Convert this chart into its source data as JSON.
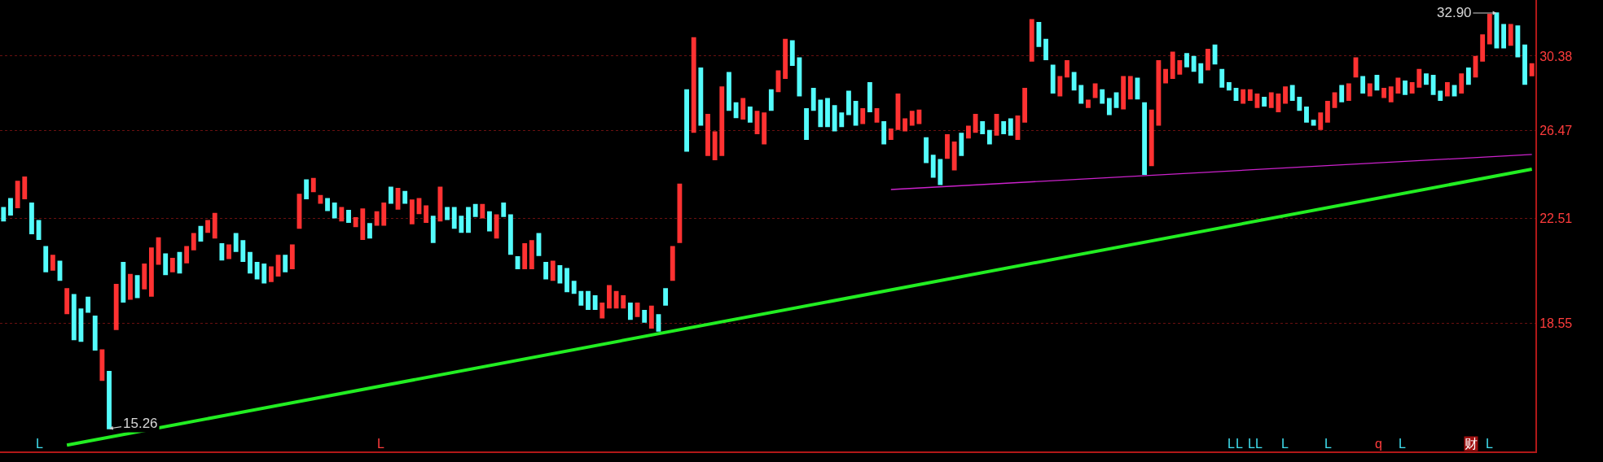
{
  "chart_data": {
    "type": "candlestick",
    "log": true,
    "ylim": [
      14.63,
      33.7
    ],
    "yticks": [
      18.55,
      22.51,
      26.47,
      30.38
    ],
    "grid": "y",
    "tick_labels": "y",
    "categories": [
      null,
      null,
      null,
      null,
      null,
      null,
      null,
      null,
      null,
      null,
      null,
      null,
      null,
      null,
      null,
      null,
      null,
      null,
      null,
      null,
      null,
      null,
      null,
      null,
      null,
      null,
      null,
      null,
      null,
      null,
      null,
      null,
      null,
      null,
      null,
      null,
      null,
      null,
      null,
      null,
      null,
      null,
      null,
      null,
      null,
      null,
      null,
      null,
      null,
      null,
      null,
      null,
      null,
      null,
      null,
      null,
      null,
      null,
      null,
      null,
      null,
      null,
      null,
      null,
      null,
      null,
      null,
      null,
      null,
      null,
      null,
      null,
      null,
      null,
      null,
      null,
      null,
      null,
      null,
      null,
      null,
      null,
      null,
      null,
      null,
      null,
      null,
      null,
      null,
      null,
      null,
      null,
      null,
      null,
      null,
      null,
      null,
      null,
      null,
      null,
      null,
      null,
      null,
      null,
      null,
      null,
      null,
      null,
      null,
      null,
      null,
      null,
      null,
      null,
      null,
      null,
      null,
      null,
      null,
      null,
      null,
      null,
      null,
      null,
      null,
      null,
      null,
      null,
      null,
      null,
      null,
      null,
      null,
      null,
      null,
      null,
      null,
      null,
      null,
      null,
      null,
      null,
      null,
      null,
      null,
      null,
      null,
      null,
      null,
      null,
      null,
      null,
      null,
      null,
      null,
      null,
      null,
      null,
      null,
      null,
      null,
      null,
      null,
      null,
      null,
      null,
      null,
      null,
      null,
      null,
      null,
      null,
      null,
      null,
      null,
      null,
      null,
      null,
      null,
      null,
      null,
      null,
      null,
      null,
      null,
      null,
      null,
      null,
      null,
      null,
      null,
      null,
      null,
      null,
      null,
      null,
      null,
      null,
      null,
      null,
      null,
      null,
      null,
      null,
      null,
      null,
      null,
      null,
      null,
      null,
      null,
      null,
      null,
      null,
      null,
      null,
      null,
      null
    ],
    "ohlc": [
      [
        22.96,
        22.96,
        22.41,
        22.41
      ],
      [
        23.34,
        23.34,
        22.65,
        22.65
      ],
      [
        22.96,
        24.1,
        22.96,
        24.1
      ],
      [
        23.34,
        24.29,
        23.34,
        24.29
      ],
      [
        23.15,
        23.15,
        21.88,
        21.88
      ],
      [
        22.41,
        22.41,
        21.65,
        21.65
      ],
      [
        21.36,
        21.36,
        20.4,
        20.4
      ],
      [
        20.46,
        21.02,
        20.46,
        21.02
      ],
      [
        20.79,
        20.79,
        20.08,
        20.08
      ],
      [
        18.88,
        19.76,
        18.88,
        19.76
      ],
      [
        19.55,
        19.55,
        17.99,
        17.99
      ],
      [
        19.03,
        19.03,
        17.94,
        17.94
      ],
      [
        19.45,
        19.45,
        18.93,
        18.93
      ],
      [
        18.78,
        18.78,
        17.65,
        17.65
      ],
      [
        16.69,
        17.65,
        16.69,
        17.65
      ],
      [
        16.96,
        16.96,
        15.26,
        15.26
      ],
      [
        18.33,
        19.92,
        18.33,
        19.92
      ],
      [
        20.74,
        20.74,
        19.29,
        19.29
      ],
      [
        19.39,
        20.29,
        19.39,
        20.29
      ],
      [
        20.24,
        20.24,
        19.45,
        19.45
      ],
      [
        19.76,
        20.68,
        19.76,
        20.68
      ],
      [
        19.5,
        21.3,
        19.5,
        21.3
      ],
      [
        20.68,
        21.71,
        20.68,
        21.71
      ],
      [
        21.07,
        21.07,
        20.29,
        20.29
      ],
      [
        20.4,
        20.9,
        20.4,
        20.9
      ],
      [
        21.13,
        21.13,
        20.35,
        20.35
      ],
      [
        20.74,
        21.36,
        20.74,
        21.36
      ],
      [
        21.24,
        21.88,
        21.24,
        21.88
      ],
      [
        22.17,
        22.17,
        21.59,
        21.59
      ],
      [
        21.94,
        22.41,
        21.94,
        22.41
      ],
      [
        21.71,
        22.71,
        21.71,
        22.71
      ],
      [
        21.47,
        21.47,
        20.85,
        20.85
      ],
      [
        20.9,
        21.42,
        20.9,
        21.42
      ],
      [
        21.88,
        21.88,
        21.18,
        21.18
      ],
      [
        21.59,
        21.59,
        20.79,
        20.79
      ],
      [
        21.13,
        21.13,
        20.35,
        20.35
      ],
      [
        20.74,
        20.74,
        20.13,
        20.13
      ],
      [
        20.68,
        20.68,
        19.98,
        19.98
      ],
      [
        20.03,
        20.57,
        20.03,
        20.57
      ],
      [
        20.24,
        21.02,
        20.24,
        21.02
      ],
      [
        21.02,
        21.02,
        20.4,
        20.4
      ],
      [
        20.51,
        21.42,
        20.51,
        21.42
      ],
      [
        22.11,
        23.53,
        22.11,
        23.53
      ],
      [
        24.16,
        24.16,
        23.34,
        23.34
      ],
      [
        23.65,
        24.23,
        23.65,
        24.23
      ],
      [
        23.15,
        23.47,
        23.15,
        23.47
      ],
      [
        23.34,
        23.34,
        22.84,
        22.84
      ],
      [
        23.15,
        23.15,
        22.53,
        22.53
      ],
      [
        22.41,
        22.96,
        22.41,
        22.96
      ],
      [
        22.84,
        22.84,
        22.35,
        22.35
      ],
      [
        22.17,
        22.53,
        22.17,
        22.53
      ],
      [
        21.65,
        22.9,
        21.65,
        22.9
      ],
      [
        22.29,
        22.29,
        21.71,
        21.71
      ],
      [
        22.23,
        22.78,
        22.23,
        22.78
      ],
      [
        22.23,
        23.15,
        22.23,
        23.15
      ],
      [
        23.84,
        23.84,
        23.15,
        23.15
      ],
      [
        22.9,
        23.78,
        22.9,
        23.78
      ],
      [
        23.65,
        23.65,
        23.15,
        23.15
      ],
      [
        22.29,
        23.28,
        22.29,
        23.28
      ],
      [
        22.71,
        23.34,
        22.71,
        23.34
      ],
      [
        22.35,
        23.03,
        22.35,
        23.03
      ],
      [
        22.59,
        22.59,
        21.53,
        21.53
      ],
      [
        22.41,
        23.84,
        22.41,
        23.84
      ],
      [
        22.96,
        22.96,
        22.47,
        22.47
      ],
      [
        22.96,
        22.96,
        22.11,
        22.11
      ],
      [
        22.59,
        22.59,
        21.94,
        21.94
      ],
      [
        22.96,
        22.96,
        21.94,
        21.94
      ],
      [
        23.09,
        23.09,
        22.59,
        22.59
      ],
      [
        22.53,
        23.09,
        22.53,
        23.09
      ],
      [
        22.78,
        22.78,
        22.0,
        22.0
      ],
      [
        21.71,
        22.65,
        21.71,
        22.65
      ],
      [
        23.15,
        23.15,
        22.59,
        22.59
      ],
      [
        22.65,
        22.65,
        21.07,
        21.07
      ],
      [
        20.96,
        20.96,
        20.51,
        20.51
      ],
      [
        20.51,
        21.47,
        20.51,
        21.47
      ],
      [
        20.51,
        21.59,
        20.51,
        21.59
      ],
      [
        21.88,
        21.88,
        21.02,
        21.02
      ],
      [
        20.74,
        20.74,
        20.13,
        20.13
      ],
      [
        20.08,
        20.79,
        20.08,
        20.79
      ],
      [
        20.62,
        20.62,
        19.98,
        19.98
      ],
      [
        20.51,
        20.51,
        19.66,
        19.66
      ],
      [
        20.03,
        20.03,
        19.6,
        19.6
      ],
      [
        19.66,
        19.66,
        19.18,
        19.18
      ],
      [
        19.66,
        19.66,
        19.03,
        19.03
      ],
      [
        19.5,
        19.5,
        19.03,
        19.03
      ],
      [
        18.73,
        19.24,
        18.73,
        19.24
      ],
      [
        19.08,
        19.87,
        19.08,
        19.87
      ],
      [
        19.08,
        19.66,
        19.08,
        19.66
      ],
      [
        19.08,
        19.5,
        19.08,
        19.5
      ],
      [
        19.24,
        19.24,
        18.68,
        18.68
      ],
      [
        18.78,
        19.24,
        18.78,
        19.24
      ],
      [
        18.98,
        18.98,
        18.58,
        18.58
      ],
      [
        18.38,
        19.13,
        18.38,
        19.13
      ],
      [
        18.83,
        18.83,
        18.28,
        18.28
      ],
      [
        19.76,
        19.76,
        19.18,
        19.18
      ],
      [
        20.08,
        21.36,
        20.08,
        21.36
      ],
      [
        21.53,
        23.97,
        21.53,
        23.97
      ],
      [
        28.54,
        28.54,
        25.49,
        25.49
      ],
      [
        26.4,
        31.42,
        26.4,
        31.42
      ],
      [
        29.71,
        29.71,
        26.75,
        26.75
      ],
      [
        25.29,
        27.27,
        25.29,
        27.27
      ],
      [
        25.09,
        26.4,
        25.09,
        26.4
      ],
      [
        25.29,
        28.69,
        25.29,
        28.69
      ],
      [
        29.47,
        29.47,
        27.49,
        27.49
      ],
      [
        27.86,
        27.86,
        27.12,
        27.12
      ],
      [
        27.05,
        28.08,
        27.05,
        28.08
      ],
      [
        27.64,
        27.64,
        26.9,
        26.9
      ],
      [
        26.33,
        27.42,
        26.33,
        27.42
      ],
      [
        25.84,
        27.34,
        25.84,
        27.34
      ],
      [
        28.54,
        28.54,
        27.49,
        27.49
      ],
      [
        28.46,
        29.55,
        28.46,
        29.55
      ],
      [
        29.16,
        31.33,
        29.16,
        31.33
      ],
      [
        31.25,
        31.25,
        29.87,
        29.87
      ],
      [
        30.27,
        30.27,
        28.23,
        28.23
      ],
      [
        27.56,
        27.56,
        26.05,
        26.05
      ],
      [
        28.62,
        28.62,
        27.49,
        27.49
      ],
      [
        28.0,
        28.0,
        26.68,
        26.68
      ],
      [
        28.08,
        28.08,
        26.68,
        26.68
      ],
      [
        27.71,
        27.71,
        26.47,
        26.47
      ],
      [
        27.34,
        27.34,
        26.68,
        26.68
      ],
      [
        28.46,
        28.46,
        27.27,
        27.27
      ],
      [
        27.93,
        27.93,
        26.75,
        26.75
      ],
      [
        26.83,
        27.56,
        26.83,
        27.56
      ],
      [
        28.92,
        28.92,
        27.42,
        27.42
      ],
      [
        26.9,
        27.56,
        26.9,
        27.56
      ],
      [
        26.9,
        26.9,
        25.84,
        25.84
      ],
      [
        26.05,
        26.54,
        26.05,
        26.54
      ],
      [
        26.54,
        28.31,
        26.54,
        28.31
      ],
      [
        26.47,
        27.05,
        26.47,
        27.05
      ],
      [
        26.75,
        27.42,
        26.75,
        27.42
      ],
      [
        26.83,
        27.49,
        26.83,
        27.49
      ],
      [
        26.12,
        26.12,
        24.96,
        24.96
      ],
      [
        25.29,
        25.29,
        24.29,
        24.29
      ],
      [
        25.09,
        25.09,
        23.97,
        23.97
      ],
      [
        25.16,
        26.26,
        25.16,
        26.26
      ],
      [
        24.62,
        25.91,
        24.62,
        25.91
      ],
      [
        26.33,
        26.33,
        25.29,
        25.29
      ],
      [
        26.12,
        26.68,
        26.12,
        26.68
      ],
      [
        26.4,
        27.27,
        26.4,
        27.27
      ],
      [
        26.9,
        26.9,
        26.33,
        26.33
      ],
      [
        26.47,
        26.47,
        25.84,
        25.84
      ],
      [
        26.26,
        27.27,
        26.26,
        27.27
      ],
      [
        26.9,
        26.9,
        26.33,
        26.33
      ],
      [
        27.05,
        27.05,
        26.26,
        26.26
      ],
      [
        26.05,
        27.19,
        26.05,
        27.19
      ],
      [
        26.9,
        28.62,
        26.9,
        28.62
      ],
      [
        30.11,
        32.49,
        30.11,
        32.49
      ],
      [
        32.32,
        32.32,
        30.93,
        30.93
      ],
      [
        31.33,
        31.33,
        30.19,
        30.19
      ],
      [
        29.87,
        29.87,
        28.38,
        28.38
      ],
      [
        28.23,
        29.24,
        28.23,
        29.24
      ],
      [
        29.24,
        30.11,
        29.24,
        30.11
      ],
      [
        29.47,
        29.47,
        28.54,
        28.54
      ],
      [
        28.77,
        28.77,
        27.86,
        27.86
      ],
      [
        27.64,
        28.0,
        27.64,
        28.0
      ],
      [
        28.15,
        28.85,
        28.15,
        28.85
      ],
      [
        28.54,
        28.54,
        27.86,
        27.86
      ],
      [
        28.08,
        28.08,
        27.27,
        27.27
      ],
      [
        28.38,
        28.38,
        27.64,
        27.64
      ],
      [
        27.56,
        29.24,
        27.56,
        29.24
      ],
      [
        28.08,
        29.24,
        28.08,
        29.24
      ],
      [
        29.16,
        29.16,
        28.08,
        28.08
      ],
      [
        27.86,
        27.86,
        24.42,
        24.42
      ],
      [
        24.82,
        27.49,
        24.82,
        27.49
      ],
      [
        26.75,
        30.11,
        26.75,
        30.11
      ],
      [
        28.92,
        29.63,
        28.92,
        29.63
      ],
      [
        29.16,
        30.59,
        29.16,
        30.59
      ],
      [
        29.39,
        30.11,
        29.39,
        30.11
      ],
      [
        30.51,
        30.51,
        29.79,
        29.79
      ],
      [
        30.35,
        30.35,
        29.55,
        29.55
      ],
      [
        29.95,
        29.95,
        28.92,
        28.92
      ],
      [
        29.63,
        30.76,
        29.63,
        30.76
      ],
      [
        31.0,
        31.0,
        29.95,
        29.95
      ],
      [
        29.63,
        29.63,
        28.69,
        28.69
      ],
      [
        28.92,
        28.92,
        28.54,
        28.54
      ],
      [
        28.62,
        28.62,
        28.0,
        28.0
      ],
      [
        27.86,
        28.54,
        27.86,
        28.54
      ],
      [
        28.0,
        28.54,
        28.0,
        28.54
      ],
      [
        27.64,
        28.31,
        27.64,
        28.31
      ],
      [
        28.15,
        28.15,
        27.71,
        27.71
      ],
      [
        27.64,
        28.38,
        27.64,
        28.38
      ],
      [
        27.42,
        28.31,
        27.42,
        28.31
      ],
      [
        27.86,
        28.69,
        27.86,
        28.69
      ],
      [
        28.77,
        28.77,
        28.0,
        28.0
      ],
      [
        28.15,
        28.15,
        27.49,
        27.49
      ],
      [
        27.64,
        27.64,
        26.9,
        26.9
      ],
      [
        26.97,
        26.97,
        26.75,
        26.75
      ],
      [
        26.54,
        27.34,
        26.54,
        27.34
      ],
      [
        26.9,
        27.93,
        26.9,
        27.93
      ],
      [
        27.64,
        28.38,
        27.64,
        28.38
      ],
      [
        28.77,
        28.77,
        27.93,
        27.93
      ],
      [
        28.0,
        28.85,
        28.0,
        28.85
      ],
      [
        29.24,
        30.27,
        29.24,
        30.27
      ],
      [
        29.24,
        29.24,
        28.38,
        28.38
      ],
      [
        28.23,
        28.85,
        28.23,
        28.85
      ],
      [
        29.31,
        29.31,
        28.54,
        28.54
      ],
      [
        28.15,
        28.62,
        28.15,
        28.62
      ],
      [
        27.93,
        28.69,
        27.93,
        28.69
      ],
      [
        28.38,
        29.16,
        28.38,
        29.16
      ],
      [
        29.0,
        29.0,
        28.31,
        28.31
      ],
      [
        28.38,
        28.92,
        28.38,
        28.92
      ],
      [
        28.69,
        29.63,
        28.69,
        29.63
      ],
      [
        29.39,
        29.39,
        28.85,
        28.85
      ],
      [
        29.31,
        29.31,
        28.31,
        28.31
      ],
      [
        28.46,
        28.46,
        28.0,
        28.0
      ],
      [
        28.23,
        28.92,
        28.23,
        28.92
      ],
      [
        28.77,
        28.77,
        28.23,
        28.23
      ],
      [
        28.38,
        29.39,
        28.38,
        29.39
      ],
      [
        29.71,
        29.71,
        28.85,
        28.85
      ],
      [
        29.24,
        30.35,
        29.24,
        30.35
      ],
      [
        30.11,
        31.59,
        30.11,
        31.59
      ],
      [
        31.09,
        32.81,
        31.09,
        32.81
      ],
      [
        32.9,
        32.9,
        30.85,
        30.85
      ],
      [
        32.2,
        32.2,
        30.85,
        30.85
      ],
      [
        31.0,
        32.2,
        31.0,
        32.2
      ],
      [
        32.11,
        32.11,
        30.35,
        30.35
      ],
      [
        31.0,
        31.0,
        28.85,
        28.85
      ],
      [
        29.31,
        29.95,
        29.31,
        29.95
      ]
    ],
    "series": [
      {
        "type": "line",
        "color": "#22ee22",
        "values": [
          null,
          null,
          null,
          null,
          null,
          null,
          null,
          null,
          null,
          14.8,
          null,
          null,
          null,
          null,
          null,
          null,
          null,
          null,
          null,
          null,
          null,
          null,
          null,
          null,
          null,
          null,
          null,
          null,
          null,
          null,
          null,
          null,
          null,
          null,
          null,
          null,
          null,
          null,
          null,
          null,
          null,
          null,
          null,
          null,
          null,
          null,
          null,
          null,
          null,
          null,
          null,
          null,
          null,
          null,
          null,
          null,
          null,
          null,
          null,
          null,
          null,
          null,
          null,
          null,
          null,
          null,
          null,
          null,
          null,
          null,
          null,
          null,
          null,
          null,
          null,
          null,
          null,
          null,
          null,
          null,
          null,
          null,
          null,
          null,
          null,
          null,
          null,
          null,
          null,
          null,
          null,
          null,
          null,
          null,
          null,
          null,
          null,
          null,
          null,
          null,
          null,
          null,
          null,
          null,
          null,
          null,
          null,
          null,
          null,
          null,
          null,
          null,
          null,
          null,
          null,
          null,
          null,
          null,
          null,
          null,
          null,
          null,
          null,
          null,
          null,
          null,
          null,
          null,
          null,
          null,
          null,
          null,
          null,
          null,
          null,
          null,
          null,
          null,
          null,
          null,
          null,
          null,
          null,
          null,
          null,
          null,
          null,
          null,
          null,
          null,
          null,
          null,
          null,
          null,
          null,
          null,
          null,
          null,
          null,
          null,
          null,
          null,
          null,
          null,
          null,
          null,
          null,
          null,
          null,
          null,
          null,
          null,
          null,
          null,
          null,
          null,
          null,
          null,
          null,
          null,
          null,
          null,
          null,
          null,
          null,
          null,
          null,
          null,
          null,
          null,
          null,
          null,
          null,
          null,
          null,
          null,
          null,
          null,
          null,
          null,
          null,
          null,
          null,
          null,
          null,
          null,
          null,
          null,
          null,
          null,
          null,
          null,
          null,
          null,
          null,
          null,
          null,
          24.65
        ]
      },
      {
        "type": "line",
        "color": "#cc22cc",
        "values": [
          null,
          null,
          null,
          null,
          null,
          null,
          null,
          null,
          null,
          null,
          null,
          null,
          null,
          null,
          null,
          null,
          null,
          null,
          null,
          null,
          null,
          null,
          null,
          null,
          null,
          null,
          null,
          null,
          null,
          null,
          null,
          null,
          null,
          null,
          null,
          null,
          null,
          null,
          null,
          null,
          null,
          null,
          null,
          null,
          null,
          null,
          null,
          null,
          null,
          null,
          null,
          null,
          null,
          null,
          null,
          null,
          null,
          null,
          null,
          null,
          null,
          null,
          null,
          null,
          null,
          null,
          null,
          null,
          null,
          null,
          null,
          null,
          null,
          null,
          null,
          null,
          null,
          null,
          null,
          null,
          null,
          null,
          null,
          null,
          null,
          null,
          null,
          null,
          null,
          null,
          null,
          null,
          null,
          null,
          null,
          null,
          null,
          null,
          null,
          null,
          null,
          null,
          null,
          null,
          null,
          null,
          null,
          null,
          null,
          null,
          null,
          null,
          null,
          null,
          null,
          null,
          null,
          null,
          null,
          null,
          null,
          null,
          null,
          null,
          null,
          null,
          23.74,
          null,
          null,
          null,
          null,
          null,
          null,
          null,
          null,
          null,
          null,
          null,
          null,
          null,
          null,
          null,
          null,
          null,
          null,
          null,
          null,
          null,
          null,
          null,
          null,
          null,
          null,
          null,
          null,
          null,
          null,
          null,
          null,
          null,
          null,
          null,
          null,
          null,
          null,
          null,
          null,
          null,
          null,
          null,
          null,
          null,
          null,
          null,
          null,
          null,
          null,
          null,
          null,
          null,
          null,
          null,
          null,
          null,
          null,
          null,
          null,
          null,
          null,
          null,
          null,
          null,
          null,
          null,
          null,
          null,
          null,
          null,
          null,
          null,
          null,
          null,
          null,
          null,
          null,
          null,
          null,
          null,
          null,
          null,
          null,
          null,
          null,
          null,
          null,
          null,
          null,
          25.33
        ]
      }
    ],
    "annotations": [
      {
        "text": "15.26",
        "y": 15.26
      },
      "32.90",
      "L",
      "L",
      "L",
      "L",
      "L",
      "L",
      "L",
      "L",
      "q",
      "L",
      "财",
      "L"
    ]
  }
}
